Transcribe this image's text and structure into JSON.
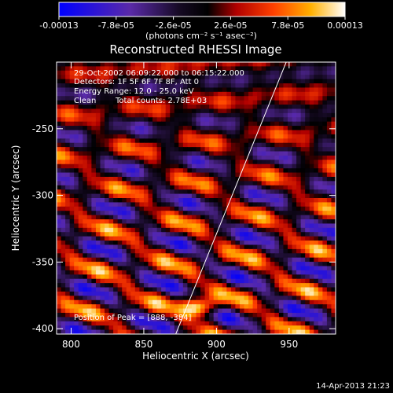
{
  "chart_data": {
    "type": "heatmap",
    "title": "Reconstructed RHESSI Image",
    "xlabel": "Heliocentric X (arcsec)",
    "ylabel": "Heliocentric Y (arcsec)",
    "xlim": [
      790,
      982
    ],
    "ylim": [
      -404,
      -200
    ],
    "x_ticks": [
      800,
      850,
      900,
      950
    ],
    "y_ticks": [
      -250,
      -300,
      -350,
      -400
    ],
    "colorbar": {
      "min": -0.00013,
      "max": 0.00013,
      "tick_labels": [
        "-0.00013",
        "-7.8e-05",
        "-2.6e-05",
        "2.6e-05",
        "7.8e-05",
        "0.00013"
      ],
      "units_label": "(photons cm⁻² s⁻¹ asec⁻²)",
      "colormap": "rhessi-blue-black-red-yellow-white"
    },
    "annotations": [
      "29-Oct-2002 06:09:22.000 to 06:15:22.000",
      "Detectors: 1F 5F 6F 7F 8F, Att 0",
      "Energy Range: 12.0 - 25.0 keV",
      "Clean",
      "Total counts: 2.78E+03"
    ],
    "peak_label": "Position of Peak = [888, -384]",
    "peak": [
      888,
      -384
    ],
    "limb_line": [
      [
        872,
        -404
      ],
      [
        948,
        -200
      ]
    ],
    "footer": "14-Apr-2013 21:23"
  }
}
